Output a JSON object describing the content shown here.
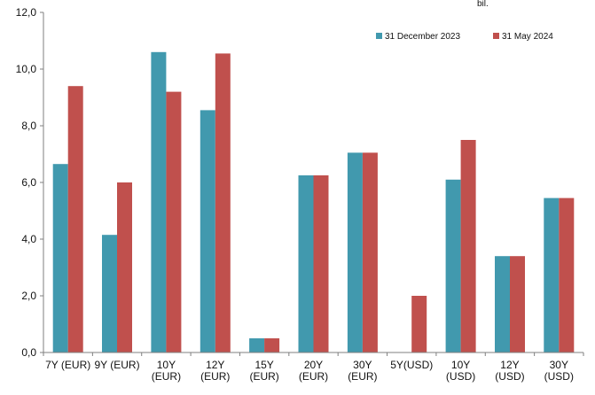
{
  "chart_data": {
    "type": "bar",
    "unit_label": "bil.",
    "categories": [
      [
        "7Y (EUR)"
      ],
      [
        "9Y (EUR)"
      ],
      [
        "10Y",
        "(EUR)"
      ],
      [
        "12Y",
        "(EUR)"
      ],
      [
        "15Y",
        "(EUR)"
      ],
      [
        "20Y",
        "(EUR)"
      ],
      [
        "30Y",
        "(EUR)"
      ],
      [
        "5Y(USD)"
      ],
      [
        "10Y",
        "(USD)"
      ],
      [
        "12Y",
        "(USD)"
      ],
      [
        "30Y",
        "(USD)"
      ]
    ],
    "series": [
      {
        "name": "31 December 2023",
        "color": "#4199ae",
        "values": [
          6.65,
          4.15,
          10.6,
          8.55,
          0.5,
          6.25,
          7.05,
          0,
          6.1,
          3.4,
          5.45
        ]
      },
      {
        "name": "31 May 2024",
        "color": "#c0504d",
        "values": [
          9.4,
          6.0,
          9.2,
          10.55,
          0.5,
          6.25,
          7.05,
          2.0,
          7.5,
          3.4,
          5.45
        ]
      }
    ],
    "ylim": [
      0,
      12
    ],
    "yticks": [
      "0,0",
      "2,0",
      "4,0",
      "6,0",
      "8,0",
      "10,0",
      "12,0"
    ],
    "grid": false,
    "legend_position": "top-right"
  }
}
